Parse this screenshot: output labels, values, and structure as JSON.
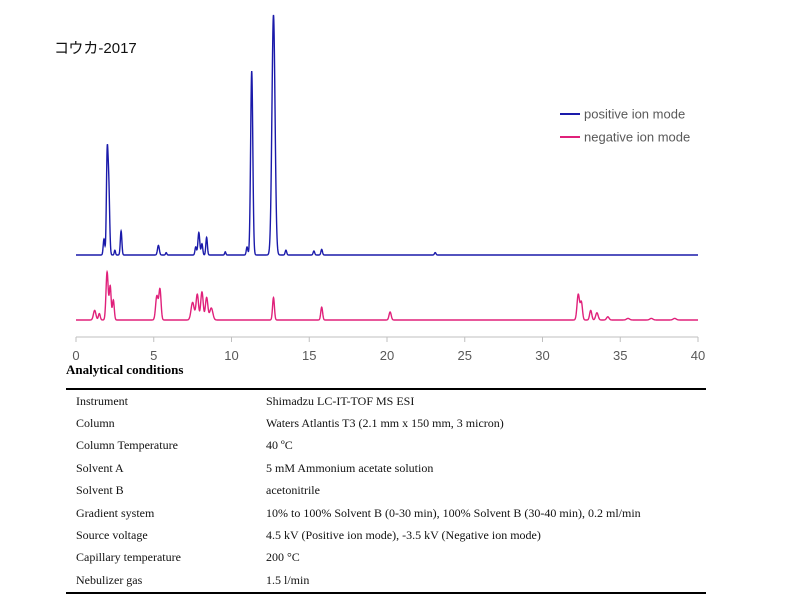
{
  "chart_data": {
    "type": "line",
    "title": "コウカ-2017",
    "xlabel": "",
    "ylabel": "",
    "xlim": [
      0,
      40
    ],
    "x_ticks": [
      "0",
      "5",
      "10",
      "15",
      "20",
      "25",
      "30",
      "35",
      "40"
    ],
    "grid": false,
    "legend_position": "top-right",
    "series": [
      {
        "name": "positive ion mode",
        "color": "#1a1aaa",
        "baseline": 0,
        "peaks": [
          {
            "x": 1.8,
            "height": 0.2,
            "width": 0.05
          },
          {
            "x": 2.0,
            "height": 1.1,
            "width": 0.05
          },
          {
            "x": 2.1,
            "height": 0.9,
            "width": 0.06
          },
          {
            "x": 2.5,
            "height": 0.06,
            "width": 0.04
          },
          {
            "x": 2.9,
            "height": 0.3,
            "width": 0.05
          },
          {
            "x": 5.3,
            "height": 0.12,
            "width": 0.06
          },
          {
            "x": 5.8,
            "height": 0.03,
            "width": 0.04
          },
          {
            "x": 7.7,
            "height": 0.1,
            "width": 0.05
          },
          {
            "x": 7.9,
            "height": 0.28,
            "width": 0.06
          },
          {
            "x": 8.1,
            "height": 0.14,
            "width": 0.05
          },
          {
            "x": 8.4,
            "height": 0.22,
            "width": 0.05
          },
          {
            "x": 9.6,
            "height": 0.04,
            "width": 0.04
          },
          {
            "x": 11.0,
            "height": 0.1,
            "width": 0.05
          },
          {
            "x": 11.3,
            "height": 2.3,
            "width": 0.07
          },
          {
            "x": 12.7,
            "height": 3.0,
            "width": 0.1
          },
          {
            "x": 13.5,
            "height": 0.06,
            "width": 0.05
          },
          {
            "x": 15.3,
            "height": 0.05,
            "width": 0.05
          },
          {
            "x": 15.8,
            "height": 0.07,
            "width": 0.05
          },
          {
            "x": 23.1,
            "height": 0.03,
            "width": 0.05
          }
        ]
      },
      {
        "name": "negative ion mode",
        "color": "#e0207a",
        "baseline": 0,
        "peaks": [
          {
            "x": 1.2,
            "height": 0.12,
            "width": 0.08
          },
          {
            "x": 1.5,
            "height": 0.08,
            "width": 0.06
          },
          {
            "x": 2.0,
            "height": 0.6,
            "width": 0.07
          },
          {
            "x": 2.2,
            "height": 0.42,
            "width": 0.06
          },
          {
            "x": 2.4,
            "height": 0.25,
            "width": 0.06
          },
          {
            "x": 5.2,
            "height": 0.3,
            "width": 0.08
          },
          {
            "x": 5.4,
            "height": 0.38,
            "width": 0.07
          },
          {
            "x": 7.5,
            "height": 0.22,
            "width": 0.1
          },
          {
            "x": 7.8,
            "height": 0.32,
            "width": 0.08
          },
          {
            "x": 8.1,
            "height": 0.35,
            "width": 0.08
          },
          {
            "x": 8.4,
            "height": 0.28,
            "width": 0.08
          },
          {
            "x": 8.7,
            "height": 0.15,
            "width": 0.1
          },
          {
            "x": 12.7,
            "height": 0.28,
            "width": 0.06
          },
          {
            "x": 15.8,
            "height": 0.16,
            "width": 0.06
          },
          {
            "x": 20.2,
            "height": 0.1,
            "width": 0.07
          },
          {
            "x": 32.3,
            "height": 0.32,
            "width": 0.08
          },
          {
            "x": 32.5,
            "height": 0.22,
            "width": 0.07
          },
          {
            "x": 33.1,
            "height": 0.12,
            "width": 0.07
          },
          {
            "x": 33.5,
            "height": 0.09,
            "width": 0.08
          },
          {
            "x": 34.2,
            "height": 0.04,
            "width": 0.08
          },
          {
            "x": 35.5,
            "height": 0.02,
            "width": 0.1
          },
          {
            "x": 37.0,
            "height": 0.02,
            "width": 0.1
          },
          {
            "x": 38.5,
            "height": 0.02,
            "width": 0.1
          }
        ]
      }
    ]
  },
  "conditions": {
    "heading": "Analytical conditions",
    "rows": [
      {
        "label": "Instrument",
        "value": "Shimadzu LC-IT-TOF MS ESI"
      },
      {
        "label": "Column",
        "value": "Waters Atlantis T3 (2.1 mm x 150 mm, 3 micron)"
      },
      {
        "label": "Column Temperature",
        "value": "40 ºC"
      },
      {
        "label": "Solvent A",
        "value": "5 mM Ammonium acetate solution"
      },
      {
        "label": "Solvent B",
        "value": "acetonitrile"
      },
      {
        "label": "Gradient system",
        "value": "10% to 100% Solvent B (0-30 min), 100% Solvent B (30-40 min), 0.2 ml/min"
      },
      {
        "label": "Source voltage",
        "value": "4.5 kV (Positive ion mode), -3.5 kV (Negative ion mode)"
      },
      {
        "label": "Capillary temperature",
        "value": "200 °C"
      },
      {
        "label": "Nebulizer gas",
        "value": "1.5 l/min"
      }
    ]
  }
}
